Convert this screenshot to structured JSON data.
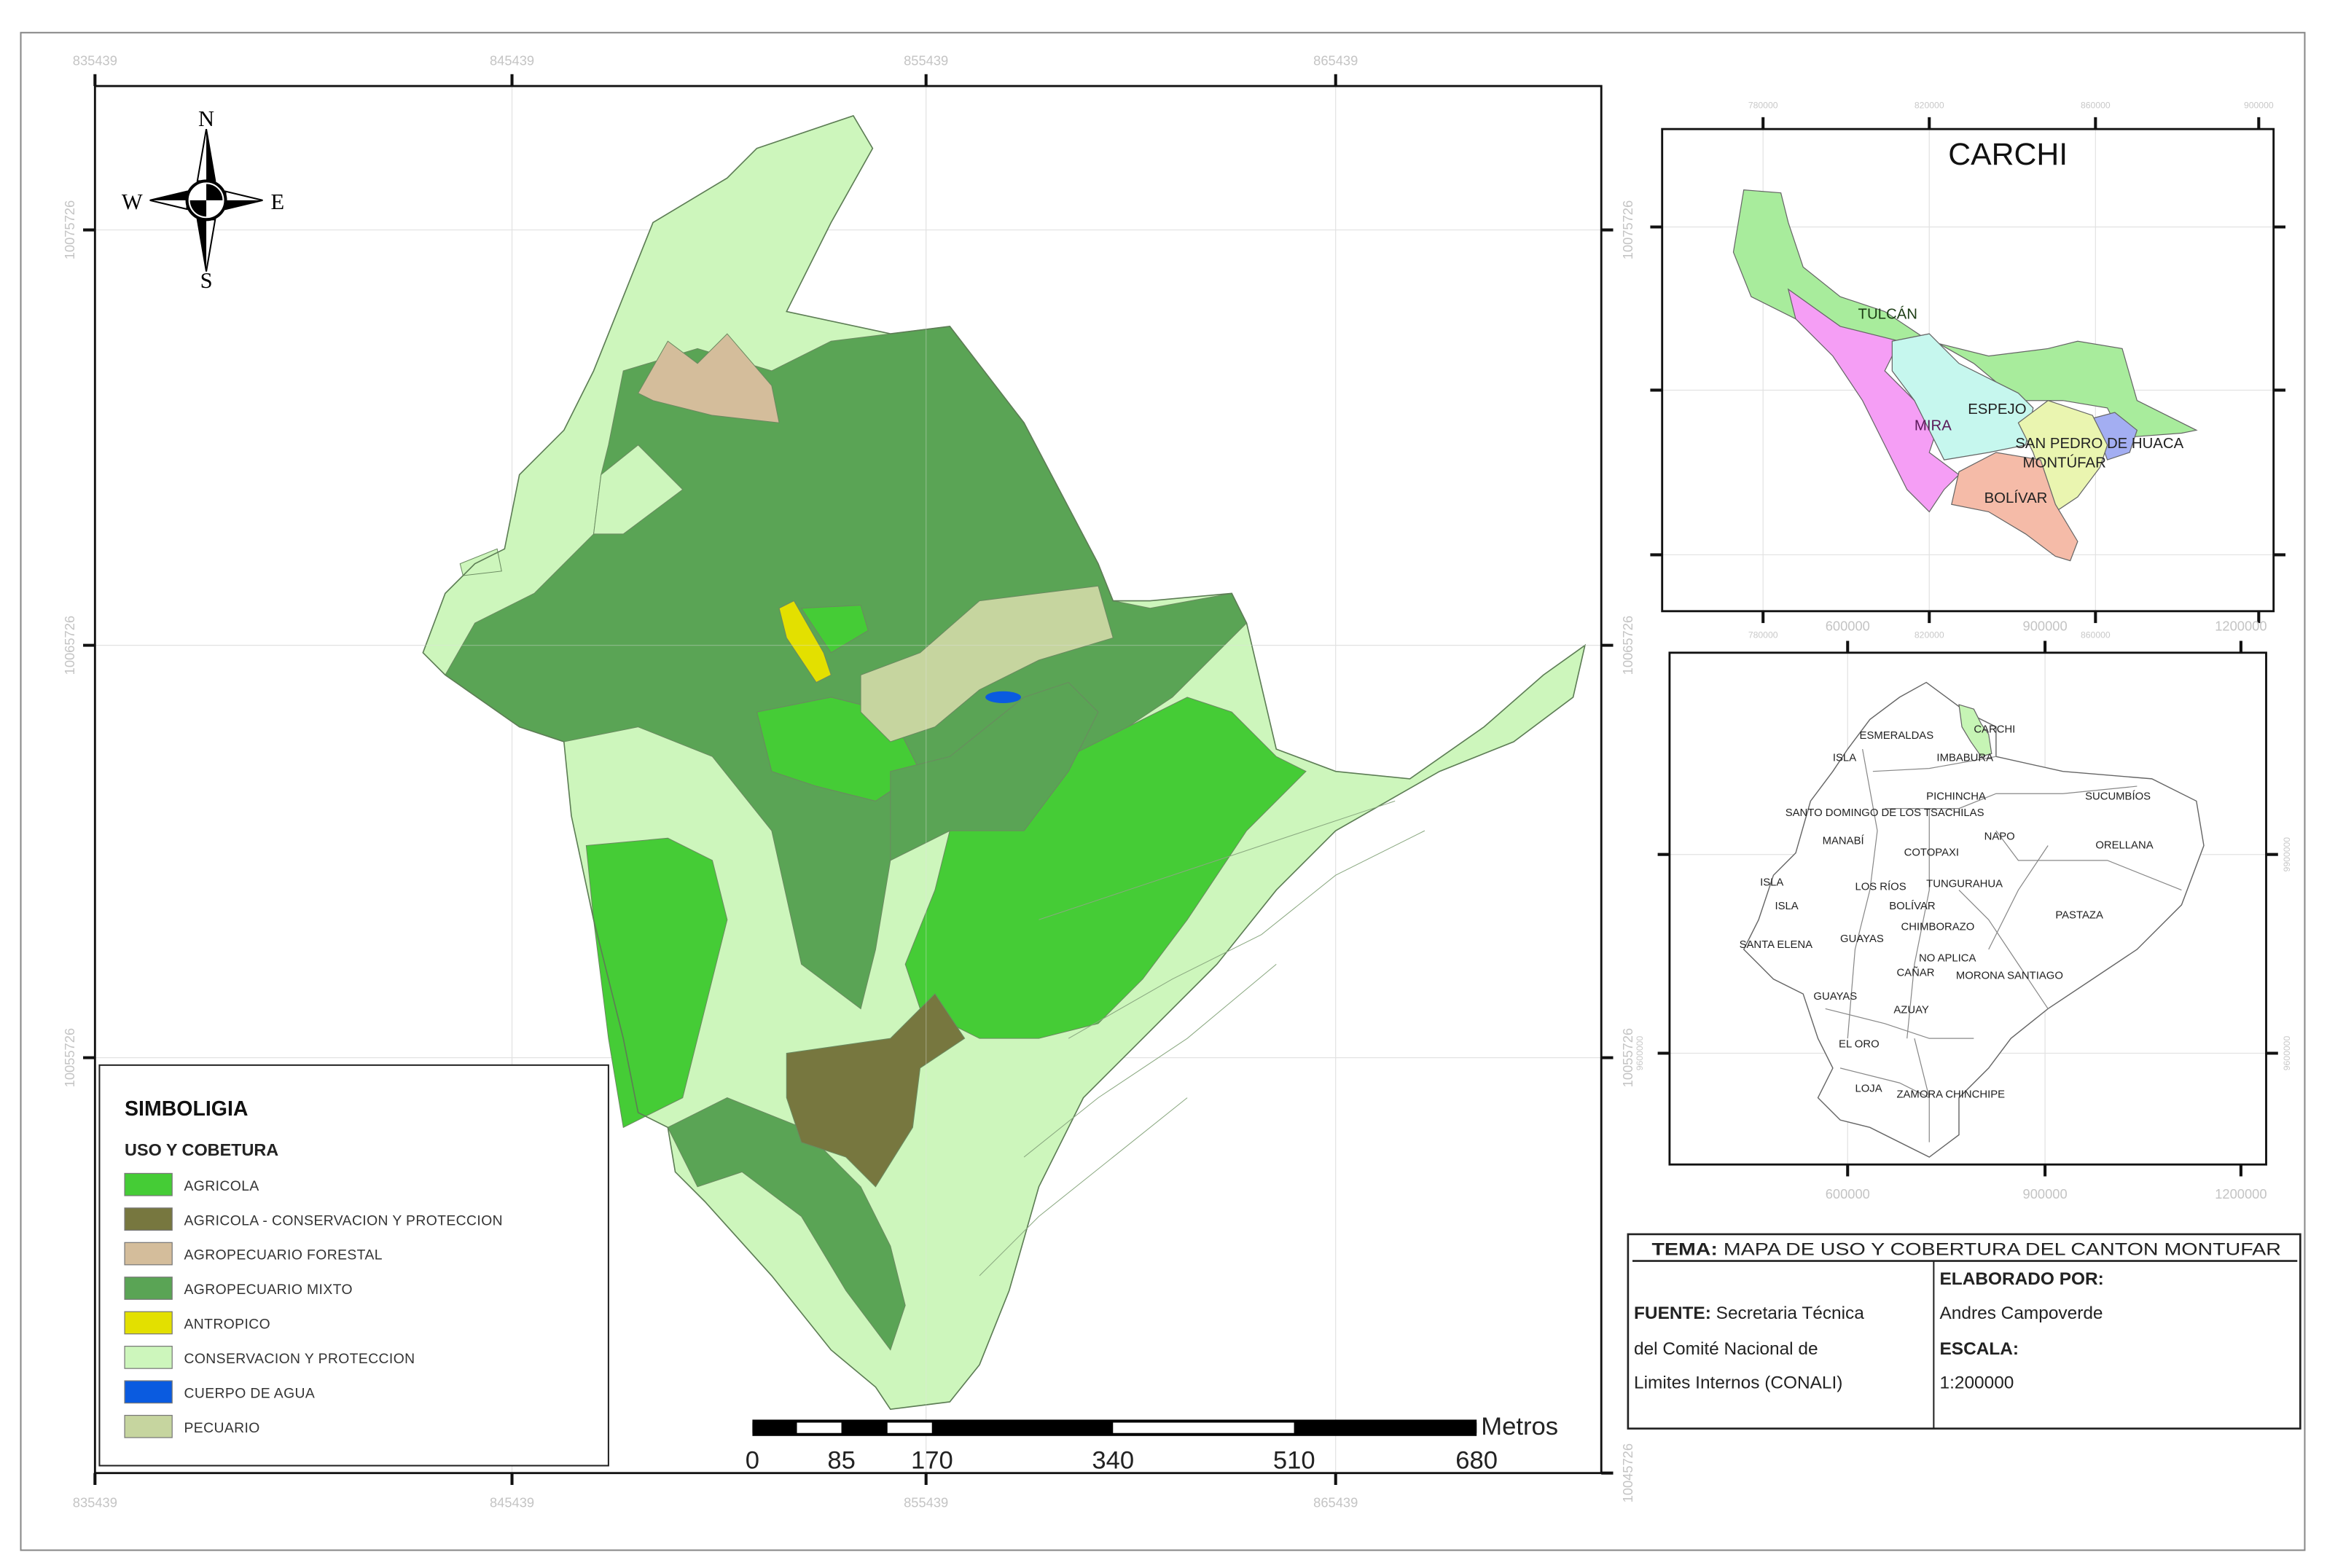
{
  "main_map": {
    "x_ticks": [
      "835439",
      "845439",
      "855439",
      "865439"
    ],
    "y_ticks": [
      "10075726",
      "10065726",
      "10055726",
      "10045726"
    ]
  },
  "north_arrow": {
    "n": "N",
    "s": "S",
    "e": "E",
    "w": "W"
  },
  "legend": {
    "title": "SIMBOLIGIA",
    "subtitle": "USO Y COBETURA",
    "items": [
      {
        "label": "AGRICOLA",
        "color": "#45cc36"
      },
      {
        "label": "AGRICOLA - CONSERVACION Y PROTECCION",
        "color": "#77773f"
      },
      {
        "label": "AGROPECUARIO FORESTAL",
        "color": "#d4bd9b"
      },
      {
        "label": "AGROPECUARIO MIXTO",
        "color": "#5aa455"
      },
      {
        "label": "ANTROPICO",
        "color": "#e3e000"
      },
      {
        "label": "CONSERVACION Y PROTECCION",
        "color": "#cdf6bc"
      },
      {
        "label": "CUERPO DE AGUA",
        "color": "#0a5be0"
      },
      {
        "label": "PECUARIO",
        "color": "#c6d59f"
      }
    ]
  },
  "scale_bar": {
    "unit": "Metros",
    "labels": [
      "0",
      "85",
      "170",
      "340",
      "510",
      "680"
    ]
  },
  "carchi_inset": {
    "title": "CARCHI",
    "x_ticks": [
      "780000",
      "820000",
      "860000",
      "900000"
    ],
    "cantons": [
      {
        "name": "TULCÁN",
        "color": "#a8ec9c"
      },
      {
        "name": "MIRA",
        "color": "#f59ef5"
      },
      {
        "name": "ESPEJO",
        "color": "#c6f7ee"
      },
      {
        "name": "SAN PEDRO DE HUACA",
        "color": "#a3aef2"
      },
      {
        "name": "MONTÚFAR",
        "color": "#eaf5b0"
      },
      {
        "name": "BOLÍVAR",
        "color": "#f5bba8"
      }
    ]
  },
  "ecuador_inset": {
    "x_ticks": [
      "600000",
      "900000",
      "1200000"
    ],
    "y_ticks": [
      "9900000",
      "9600000"
    ],
    "highlight_color": "#c6f5b5",
    "provinces": [
      "ESMERALDAS",
      "CARCHI",
      "ISLA",
      "IMBABURA",
      "PICHINCHA",
      "SUCUMBÍOS",
      "SANTO DOMINGO DE LOS TSACHILAS",
      "MANABÍ",
      "NAPO",
      "ORELLANA",
      "COTOPAXI",
      "ISLA",
      "LOS RÍOS",
      "TUNGURAHUA",
      "ISLA",
      "BOLÍVAR",
      "PASTAZA",
      "CHIMBORAZO",
      "SANTA ELENA",
      "GUAYAS",
      "NO APLICA",
      "CAÑAR",
      "MORONA SANTIAGO",
      "GUAYAS",
      "AZUAY",
      "EL ORO",
      "LOJA",
      "ZAMORA CHINCHIPE"
    ]
  },
  "title_block": {
    "tema_label": "TEMA:",
    "tema_value": "MAPA DE USO Y COBERTURA DEL CANTON MONTUFAR",
    "fuente_label": "FUENTE:",
    "fuente_line1": "Secretaria Técnica",
    "fuente_line2": "del Comité Nacional de",
    "fuente_line3": "Limites Internos (CONALI)",
    "elaborado_label": "ELABORADO POR:",
    "elaborado_value": "Andres Campoverde",
    "escala_label": "ESCALA:",
    "escala_value": "1:200000"
  }
}
